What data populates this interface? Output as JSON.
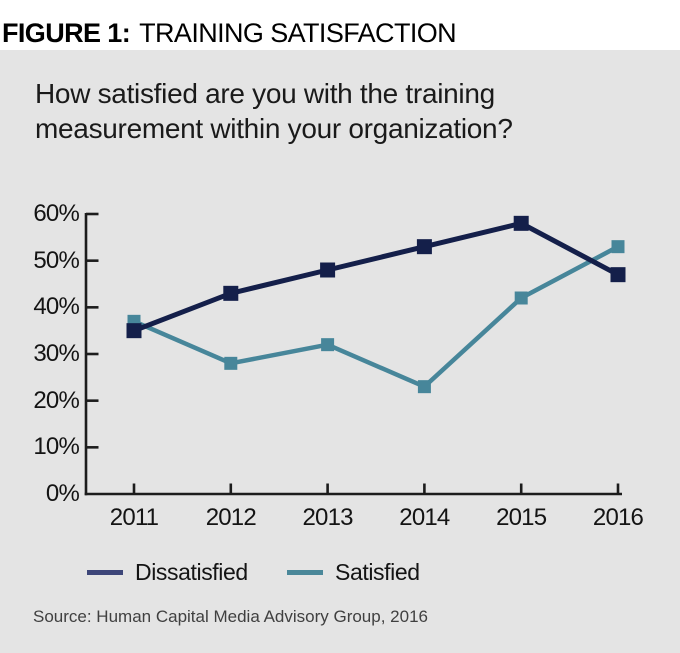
{
  "figure": {
    "label": "FIGURE 1:",
    "title": "TRAINING SATISFACTION",
    "question": "How satisfied are you with the training\nmeasurement within your organization?",
    "source": "Source: Human Capital Media Advisory Group, 2016"
  },
  "colors": {
    "panel_bg": "#e4e4e4",
    "axis": "#1c1c1c",
    "dissatisfied_line": "#141f4a",
    "satisfied_line": "#47869a",
    "dissatisfied_legend": "#3d4679",
    "satisfied_legend": "#4a8799"
  },
  "chart_data": {
    "type": "line",
    "x": [
      2011,
      2012,
      2013,
      2014,
      2015,
      2016
    ],
    "series": [
      {
        "name": "Dissatisfied",
        "values": [
          35,
          43,
          48,
          53,
          58,
          47
        ],
        "color": "#141f4a",
        "legend_color": "#3d4679",
        "marker": "square",
        "marker_size": 15,
        "line_width": 5
      },
      {
        "name": "Satisfied",
        "values": [
          37,
          28,
          32,
          23,
          42,
          53
        ],
        "color": "#47869a",
        "legend_color": "#4a8799",
        "marker": "square",
        "marker_size": 13,
        "line_width": 4.5
      }
    ],
    "title": "FIGURE 1: TRAINING SATISFACTION",
    "subtitle": "How satisfied are you with the training measurement within your organization?",
    "xlabel": "",
    "ylabel": "",
    "ylim": [
      0,
      60
    ],
    "ytick_step": 10,
    "ytick_suffix": "%",
    "grid": false,
    "legend_position": "bottom"
  }
}
